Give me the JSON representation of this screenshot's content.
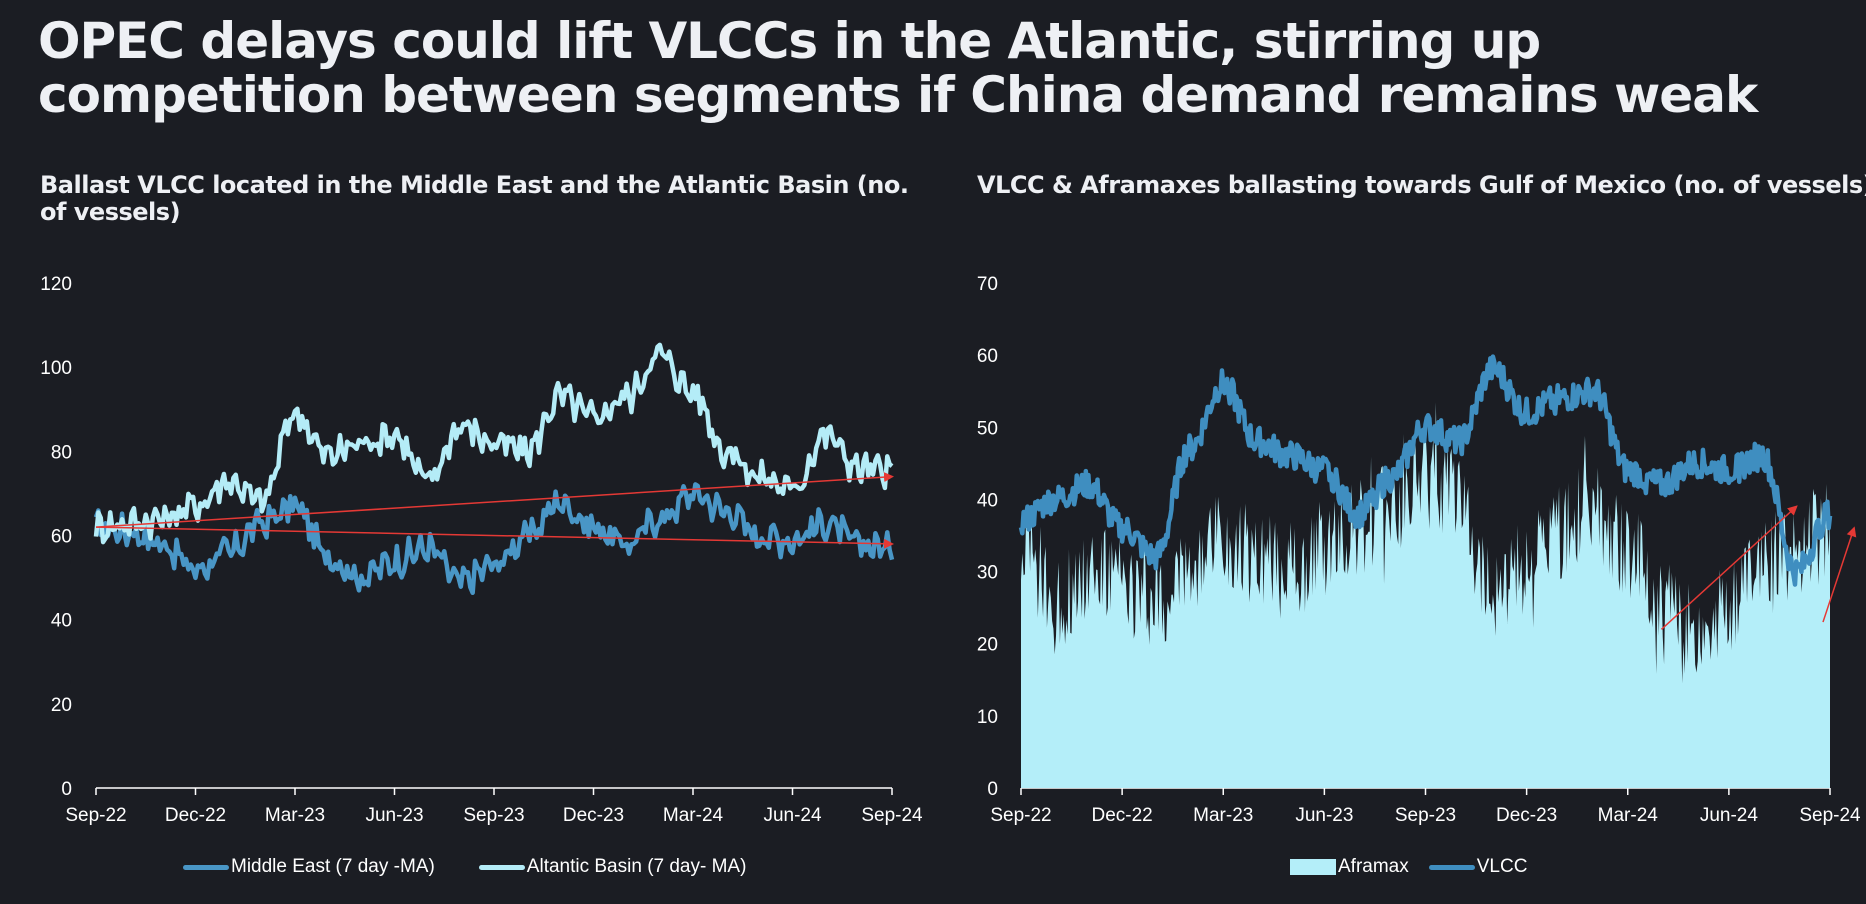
{
  "title": "OPEC delays could lift VLCCs in the Atlantic, stirring up competition between segments if China demand remains weak",
  "colors": {
    "background": "#1b1d23",
    "middle_east": "#4996c6",
    "atlantic": "#b4ecf7",
    "aframax": "#b4eef9",
    "vlcc": "#3f8ec0",
    "arrow": "#e53935",
    "axis": "#ffffff"
  },
  "chart_data": [
    {
      "type": "line",
      "title": "Ballast VLCC located in the Middle East and the Atlantic Basin (no. of vessels)",
      "xlabel": "",
      "ylabel": "",
      "ylim": [
        0,
        120
      ],
      "yticks": [
        "0",
        "20",
        "40",
        "60",
        "80",
        "100",
        "120"
      ],
      "xticks": [
        "Sep-22",
        "Dec-22",
        "Mar-23",
        "Jun-23",
        "Sep-23",
        "Dec-23",
        "Mar-24",
        "Jun-24",
        "Sep-24"
      ],
      "x": [
        "Sep-22",
        "Oct-22",
        "Nov-22",
        "Dec-22",
        "Jan-23",
        "Feb-23",
        "Mar-23",
        "Apr-23",
        "May-23",
        "Jun-23",
        "Jul-23",
        "Aug-23",
        "Sep-23",
        "Oct-23",
        "Nov-23",
        "Dec-23",
        "Jan-24",
        "Feb-24",
        "Mar-24",
        "Apr-24",
        "May-24",
        "Jun-24",
        "Jul-24",
        "Aug-24",
        "Sep-24"
      ],
      "series": [
        {
          "name": "Middle East (7 day -MA)",
          "values": [
            62,
            61,
            58,
            52,
            56,
            63,
            67,
            55,
            50,
            54,
            57,
            49,
            53,
            60,
            68,
            62,
            58,
            64,
            70,
            66,
            60,
            59,
            63,
            58,
            57
          ]
        },
        {
          "name": "Altantic Basin (7 day- MA)",
          "values": [
            62,
            63,
            64,
            67,
            73,
            68,
            89,
            79,
            82,
            84,
            73,
            86,
            82,
            80,
            93,
            88,
            93,
            103,
            94,
            80,
            74,
            71,
            84,
            76,
            75
          ]
        }
      ],
      "trendlines": [
        {
          "name": "Middle East trend",
          "from": [
            "Sep-22",
            62
          ],
          "to": [
            "Sep-24",
            58
          ]
        },
        {
          "name": "Atlantic trend",
          "from": [
            "Sep-22",
            62
          ],
          "to": [
            "Sep-24",
            74
          ]
        }
      ],
      "legend": [
        "Middle East (7 day -MA)",
        "Altantic Basin (7 day- MA)"
      ],
      "legend_position": "bottom"
    },
    {
      "type": "area",
      "title": "VLCC & Aframaxes ballasting towards Gulf of Mexico (no. of vessels)",
      "xlabel": "",
      "ylabel": "",
      "ylim": [
        0,
        70
      ],
      "yticks": [
        "0",
        "10",
        "20",
        "30",
        "40",
        "50",
        "60",
        "70"
      ],
      "xticks": [
        "Sep-22",
        "Dec-22",
        "Mar-23",
        "Jun-23",
        "Sep-23",
        "Dec-23",
        "Mar-24",
        "Jun-24",
        "Sep-24"
      ],
      "x": [
        "Sep-22",
        "Oct-22",
        "Nov-22",
        "Dec-22",
        "Jan-23",
        "Feb-23",
        "Mar-23",
        "Apr-23",
        "May-23",
        "Jun-23",
        "Jul-23",
        "Aug-23",
        "Sep-23",
        "Oct-23",
        "Nov-23",
        "Dec-23",
        "Jan-24",
        "Feb-24",
        "Mar-24",
        "Apr-24",
        "May-24",
        "Jun-24",
        "Jul-24",
        "Aug-24",
        "Sep-24"
      ],
      "series": [
        {
          "name": "Aframax",
          "type": "area",
          "values": [
            34,
            25,
            30,
            28,
            26,
            30,
            35,
            32,
            30,
            33,
            36,
            38,
            44,
            40,
            28,
            31,
            35,
            38,
            33,
            24,
            22,
            26,
            31,
            33,
            37
          ]
        },
        {
          "name": "VLCC",
          "type": "line",
          "values": [
            37,
            40,
            42,
            36,
            32,
            47,
            56,
            48,
            46,
            44,
            38,
            43,
            50,
            48,
            58,
            52,
            54,
            55,
            44,
            42,
            45,
            44,
            46,
            30,
            38
          ]
        }
      ],
      "trendlines": [
        {
          "name": "Aframax recovery arrow",
          "from": [
            "Apr-24",
            22
          ],
          "to": [
            "Aug-24",
            39
          ]
        },
        {
          "name": "Right-edge arrow",
          "from": [
            "Sep-24",
            23
          ],
          "to": [
            "Sep-24",
            36
          ]
        }
      ],
      "legend": [
        "Aframax",
        "VLCC"
      ],
      "legend_position": "bottom"
    }
  ]
}
